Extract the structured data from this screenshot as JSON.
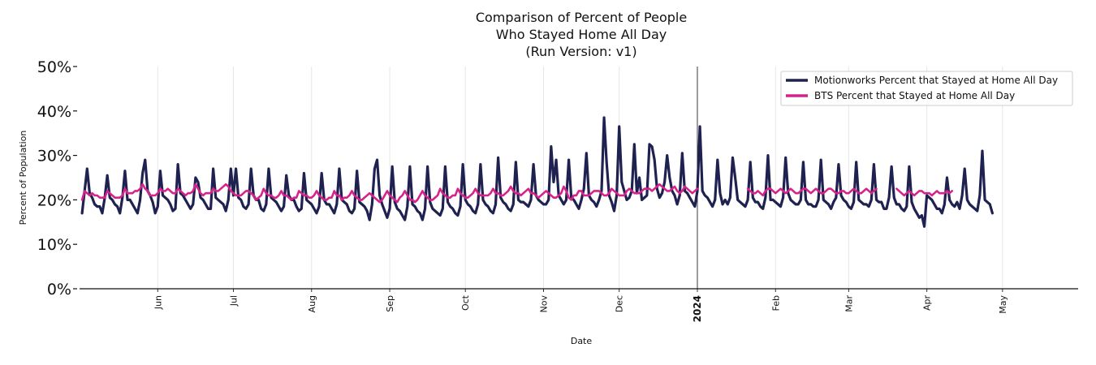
{
  "chart_data": {
    "type": "line",
    "title": [
      "Comparison of Percent of People",
      "Who Stayed Home All Day",
      "(Run Version: v1)"
    ],
    "xlabel": "Date",
    "ylabel": "Percent of Population",
    "ylim": [
      0,
      50
    ],
    "yticks": [
      0,
      10,
      20,
      30,
      40,
      50
    ],
    "ytick_labels": [
      "0%",
      "10%",
      "20%",
      "30%",
      "40%",
      "50%"
    ],
    "x_start": "2023-05-01",
    "x_end": "2024-05-31",
    "x_months": [
      {
        "label": "Jun",
        "date": "2023-06-01",
        "bold": false
      },
      {
        "label": "Jul",
        "date": "2023-07-01",
        "bold": false
      },
      {
        "label": "Aug",
        "date": "2023-08-01",
        "bold": false
      },
      {
        "label": "Sep",
        "date": "2023-09-01",
        "bold": false
      },
      {
        "label": "Oct",
        "date": "2023-10-01",
        "bold": false
      },
      {
        "label": "Nov",
        "date": "2023-11-01",
        "bold": false
      },
      {
        "label": "Dec",
        "date": "2023-12-01",
        "bold": false
      },
      {
        "label": "2024",
        "date": "2024-01-01",
        "bold": true
      },
      {
        "label": "Feb",
        "date": "2024-02-01",
        "bold": false
      },
      {
        "label": "Mar",
        "date": "2024-03-01",
        "bold": false
      },
      {
        "label": "Apr",
        "date": "2024-04-01",
        "bold": false
      },
      {
        "label": "May",
        "date": "2024-05-01",
        "bold": false
      }
    ],
    "vline_date": "2024-01-01",
    "legend_position": "top-right",
    "series": [
      {
        "name": "Motionworks Percent that Stayed at Home All Day",
        "color": "#1f2151",
        "segments": [
          {
            "start": "2023-05-02",
            "values": [
              17.0,
              22.0,
              27.0,
              21.5,
              20.5,
              19.0,
              18.5,
              18.5,
              17.0,
              20.5,
              25.5,
              20.5,
              20.0,
              19.0,
              18.5,
              17.0,
              20.5,
              26.5,
              20.0,
              20.0,
              19.0,
              18.0,
              17.0,
              20.0,
              26.0,
              29.0,
              22.0,
              21.0,
              19.5,
              17.0,
              18.5,
              26.5,
              21.0,
              20.5,
              20.0,
              19.0,
              17.5,
              18.0,
              28.0,
              21.5,
              21.0,
              20.0,
              19.0,
              18.0,
              19.0,
              25.0,
              24.0,
              20.5,
              20.0,
              19.0,
              18.0,
              18.0,
              27.0,
              20.5,
              20.0,
              19.5,
              19.0,
              17.5,
              20.0,
              27.0,
              21.0,
              27.0,
              20.5,
              20.0,
              18.5,
              18.0,
              19.0,
              27.0,
              21.0,
              20.0,
              20.0,
              18.0,
              17.5,
              19.0,
              27.0,
              20.5,
              20.0,
              19.5,
              18.5,
              17.5,
              18.5,
              25.5,
              21.0,
              20.0,
              20.0,
              18.5,
              17.5,
              18.0,
              26.0,
              20.0,
              19.5,
              19.0,
              18.0,
              17.0,
              18.5,
              26.0,
              20.0,
              19.0,
              19.0,
              18.0,
              17.0,
              19.0,
              27.0,
              20.0,
              19.5,
              19.0,
              17.5,
              17.0,
              18.0,
              26.5,
              19.5,
              19.0,
              18.5,
              17.5,
              15.5,
              19.0,
              27.0,
              29.0,
              21.0,
              19.0,
              17.5,
              16.0,
              18.0,
              27.5,
              19.5,
              18.0,
              17.5,
              16.5,
              15.5,
              18.5,
              27.5,
              19.0,
              18.5,
              17.5,
              17.0,
              15.5,
              18.0,
              27.5,
              19.5,
              18.0,
              17.5,
              17.0,
              16.5,
              18.0,
              27.5,
              19.5,
              18.5,
              18.0,
              17.0,
              16.5,
              18.5,
              28.0,
              20.0,
              19.0,
              18.5,
              17.5,
              17.0,
              19.0,
              28.0,
              20.0,
              19.0,
              18.5,
              17.5,
              17.0,
              19.0,
              29.5,
              20.5,
              19.5,
              19.0,
              18.0,
              17.5,
              19.0,
              28.5,
              20.0,
              19.5,
              19.5,
              19.0,
              18.5,
              20.0,
              28.0,
              21.0,
              20.0,
              19.5,
              19.0,
              19.0,
              20.0,
              32.0,
              24.0,
              29.0,
              21.0,
              20.0,
              19.0,
              20.0,
              29.0,
              20.5,
              20.0,
              19.0,
              18.0,
              20.0,
              22.5,
              30.5,
              21.0,
              20.0,
              19.5,
              18.5,
              20.0,
              22.0,
              38.5,
              28.5,
              21.0,
              19.5,
              17.5,
              21.0,
              36.5,
              24.0,
              22.0,
              20.0,
              20.5,
              22.0,
              32.5,
              21.5,
              25.0,
              20.0,
              20.5,
              21.0,
              32.5,
              32.0,
              29.0,
              22.5,
              20.5,
              21.5,
              24.0,
              30.0,
              25.0,
              22.0,
              21.0,
              19.0,
              21.0,
              30.5,
              22.0,
              21.5,
              20.5,
              19.5,
              18.5,
              22.0,
              36.5,
              22.0,
              21.0,
              20.5,
              19.5,
              18.5,
              20.0,
              29.0,
              21.5,
              19.0,
              20.0,
              19.0,
              20.5,
              29.5,
              25.0,
              20.0,
              19.5,
              19.0,
              18.5,
              20.0,
              28.5,
              20.5,
              19.5,
              19.5,
              18.5,
              18.0,
              20.5,
              30.0,
              20.0,
              20.0,
              19.5,
              19.0,
              18.5,
              20.5,
              29.5,
              21.5,
              20.0,
              19.5,
              19.0,
              19.0,
              20.0,
              28.5,
              20.0,
              19.0,
              19.0,
              18.5,
              18.5,
              20.0,
              29.0,
              20.0,
              19.5,
              19.0,
              18.0,
              19.5,
              20.5,
              28.0,
              21.0,
              20.0,
              19.5,
              18.5,
              18.0,
              19.5,
              28.5,
              20.0,
              19.5,
              19.0,
              19.0,
              18.5,
              20.0,
              28.0,
              20.0,
              19.5,
              19.5,
              18.0,
              18.0,
              20.5,
              27.5,
              20.5,
              19.0,
              19.0,
              18.0,
              17.5,
              18.5,
              27.5,
              19.5,
              18.0,
              17.0,
              16.0,
              16.5,
              14.0,
              21.0,
              20.5,
              20.0,
              19.0,
              18.0,
              18.0,
              17.0,
              19.0,
              25.0,
              20.0,
              19.0,
              18.5,
              19.5,
              18.0,
              21.0,
              27.0,
              20.0,
              19.0,
              18.5,
              18.0,
              17.5,
              21.0,
              31.0,
              20.0,
              19.5,
              19.0,
              17.0
            ]
          }
        ]
      },
      {
        "name": "BTS Percent that Stayed at Home All Day",
        "color": "#d6228a",
        "segments": [
          {
            "start": "2023-05-02",
            "values": [
              20.0,
              22.0,
              21.5,
              21.0,
              21.5,
              21.0,
              21.0,
              20.5,
              20.5,
              20.5,
              22.0,
              21.5,
              21.0,
              20.5,
              20.5,
              20.5,
              21.0,
              22.5,
              21.5,
              21.5,
              21.5,
              22.0,
              22.0,
              22.5,
              23.5,
              22.5,
              22.0,
              21.0,
              21.0,
              21.0,
              21.5,
              22.5,
              22.0,
              22.0,
              22.5,
              22.0,
              21.5,
              21.5,
              22.5,
              22.0,
              21.5,
              21.0,
              21.5,
              21.5,
              22.0,
              23.5,
              22.5,
              21.5,
              21.0,
              21.5,
              21.5,
              21.5,
              22.5,
              22.0,
              22.0,
              22.5,
              23.0,
              23.5,
              23.0,
              22.0,
              21.5,
              21.0,
              21.0,
              21.0,
              21.5,
              22.0,
              22.0,
              21.5,
              21.0,
              20.0,
              20.5,
              21.0,
              22.5,
              21.5,
              21.0,
              21.0,
              20.5,
              20.5,
              21.0,
              22.0,
              21.0,
              21.0,
              20.5,
              20.0,
              20.5,
              20.5,
              22.0,
              21.5,
              21.0,
              21.0,
              20.5,
              20.5,
              21.0,
              22.0,
              21.0,
              20.5,
              20.0,
              20.0,
              20.5,
              20.5,
              22.0,
              21.0,
              21.0,
              20.0,
              20.5,
              20.5,
              21.0,
              22.0,
              21.0,
              20.5,
              20.0,
              20.0,
              20.5,
              21.0,
              21.5,
              21.0,
              20.5,
              20.0,
              19.5,
              20.0,
              21.0,
              22.0,
              21.0,
              20.5,
              20.0,
              19.5,
              20.5,
              21.0,
              22.0,
              21.0,
              20.0,
              20.0,
              19.5,
              20.0,
              21.0,
              22.0,
              21.0,
              20.5,
              20.0,
              20.0,
              20.5,
              21.0,
              22.5,
              21.5,
              21.0,
              20.5,
              20.5,
              21.0,
              21.0,
              22.5,
              21.5,
              21.0,
              20.5,
              20.5,
              21.0,
              21.5,
              22.5,
              21.5,
              21.0,
              21.0,
              21.0,
              21.0,
              21.5,
              22.5,
              21.5,
              21.5,
              21.0,
              21.0,
              21.5,
              22.0,
              23.0,
              22.0,
              21.5,
              21.5,
              21.0,
              21.5,
              22.0,
              22.5,
              21.5,
              21.5,
              21.0,
              20.5,
              21.0,
              21.5,
              22.0,
              21.5,
              21.0,
              20.5,
              20.5,
              21.0,
              21.5,
              23.0,
              22.0,
              20.5,
              20.0,
              21.0,
              21.0,
              22.0,
              22.0,
              21.0,
              21.0,
              21.0,
              21.5,
              22.0,
              22.0,
              22.0,
              21.5,
              21.0,
              21.0,
              21.5,
              22.5,
              22.0,
              21.5,
              21.0,
              21.0,
              21.0,
              22.0,
              22.5,
              22.0,
              21.5,
              21.5,
              21.5,
              22.0,
              22.5,
              22.5,
              22.5,
              22.0,
              22.5,
              23.0,
              23.5,
              23.0,
              22.5,
              22.0,
              22.0,
              22.5,
              23.0,
              22.0,
              21.5,
              22.0,
              23.0,
              22.5,
              22.0,
              21.5,
              22.0,
              22.5
            ]
          },
          {
            "start": "2024-01-21",
            "values": [
              22.5,
              22.0,
              21.5,
              21.5,
              22.0,
              21.5,
              21.0,
              22.0,
              22.5,
              22.5,
              22.0,
              21.5,
              22.0,
              22.5,
              22.0,
              21.5,
              22.0,
              22.5,
              22.0,
              21.5,
              21.5,
              22.0,
              22.5,
              22.5,
              22.0,
              21.5,
              22.0,
              22.5,
              22.0,
              21.5,
              21.5,
              22.0,
              22.5,
              22.5,
              22.0,
              21.5,
              21.5,
              22.0,
              22.0,
              21.5,
              21.5,
              22.0,
              22.5,
              22.0,
              21.5,
              21.5,
              22.0,
              22.5,
              22.0,
              21.5,
              22.0,
              22.5
            ]
          },
          {
            "start": "2024-03-20",
            "values": [
              22.5,
              22.0,
              21.5,
              21.0,
              21.5,
              22.0,
              21.5,
              21.0,
              21.5,
              22.0,
              22.0,
              21.5,
              21.5,
              21.5,
              21.0,
              21.5,
              22.0,
              21.5,
              21.5,
              21.5,
              22.0,
              21.5,
              22.0
            ]
          }
        ]
      }
    ]
  }
}
